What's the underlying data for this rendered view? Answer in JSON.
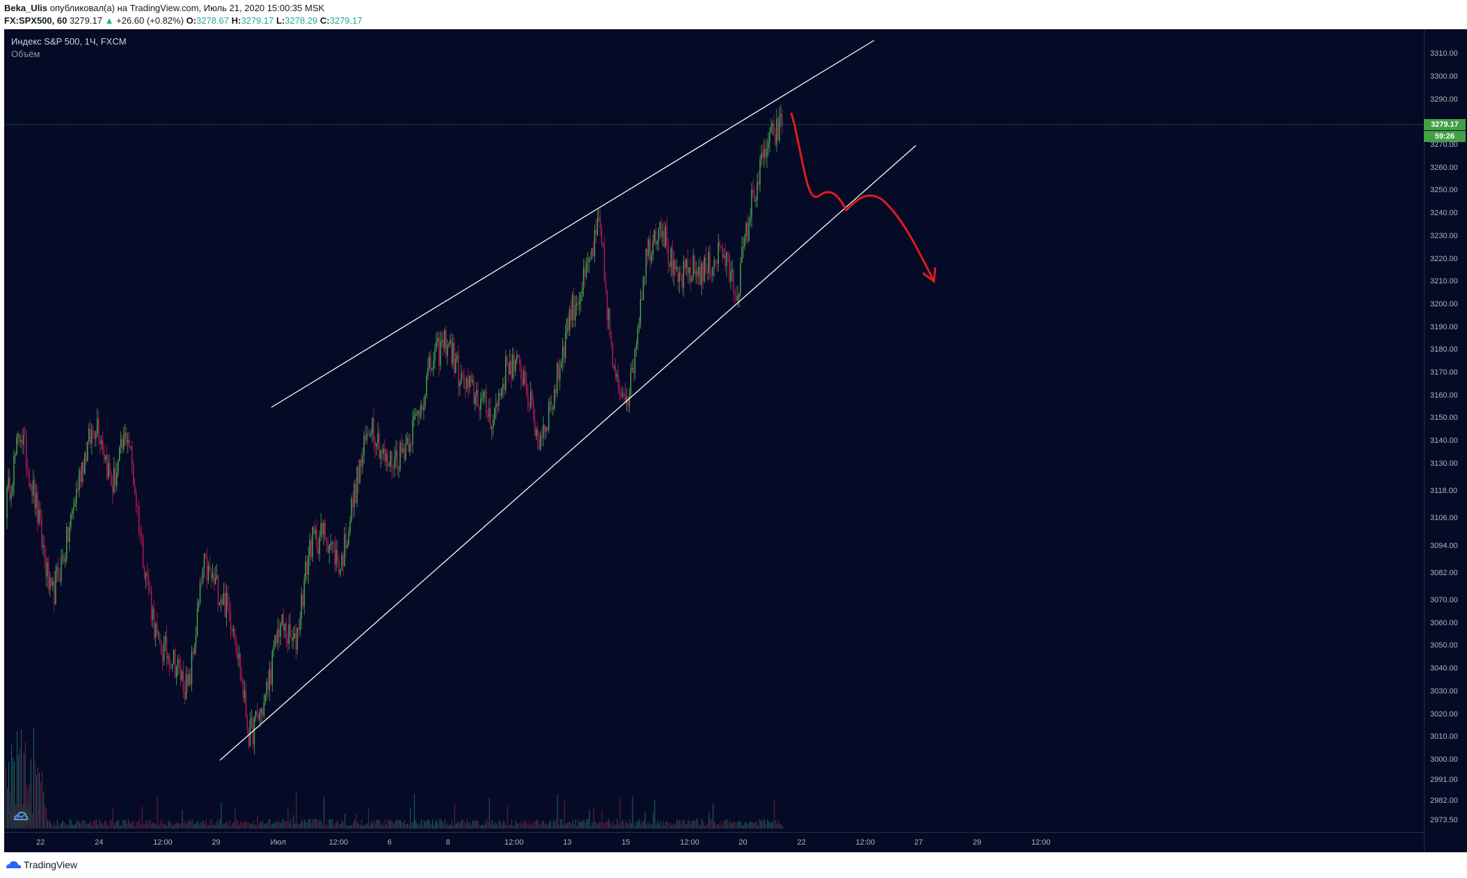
{
  "header": {
    "author": "Beka_Ulis",
    "published_text": "опубликовал(а) на TradingView.com, Июль 21, 2020 15:00:35 MSK",
    "symbol": "FX:SPX500, 60",
    "last": "3279.17",
    "change": "+26.60 (+0.82%)",
    "o_label": "O:",
    "o_val": "3278.67",
    "h_label": "H:",
    "h_val": "3279.17",
    "l_label": "L:",
    "l_val": "3278.29",
    "c_label": "C:",
    "c_val": "3279.17"
  },
  "legend": {
    "title": "Индекс S&P 500, 1Ч, FXCM",
    "volume": "Объём"
  },
  "price_axis": {
    "ticks": [
      "3310.00",
      "3300.00",
      "3290.00",
      "3270.00",
      "3260.00",
      "3250.00",
      "3240.00",
      "3230.00",
      "3220.00",
      "3210.00",
      "3200.00",
      "3190.00",
      "3180.00",
      "3170.00",
      "3160.00",
      "3150.00",
      "3140.00",
      "3130.00",
      "3118.00",
      "3106.00",
      "3094.00",
      "3082.00",
      "3070.00",
      "3060.00",
      "3050.00",
      "3040.00",
      "3030.00",
      "3020.00",
      "3010.00",
      "3000.00",
      "2991.00",
      "2982.00",
      "2973.50"
    ],
    "last_price_tag": "3279.17",
    "countdown_tag": "59:26"
  },
  "time_axis": {
    "ticks": [
      "22",
      "24",
      "12:00",
      "29",
      "Июл",
      "12:00",
      "6",
      "8",
      "12:00",
      "13",
      "15",
      "12:00",
      "20",
      "22",
      "12:00",
      "27",
      "29",
      "12:00"
    ]
  },
  "footer": {
    "brand": "TradingView"
  },
  "colors": {
    "background": "#050b26",
    "up": "#26a69a",
    "candle_up": "#4caf50",
    "candle_down": "#c2185b",
    "trendline": "#ffffff",
    "projection": "#e01c1c",
    "last_price": "#43a047"
  },
  "chart_data": {
    "type": "candlestick",
    "title": "Индекс S&P 500, 1Ч, FXCM",
    "ylim": [
      2970,
      3318
    ],
    "close_path": [
      3112,
      3145,
      3112,
      3070,
      3095,
      3130,
      3150,
      3120,
      3145,
      3092,
      3050,
      3045,
      3030,
      3085,
      3075,
      3060,
      3010,
      3025,
      3060,
      3050,
      3095,
      3100,
      3085,
      3120,
      3150,
      3130,
      3135,
      3150,
      3175,
      3185,
      3165,
      3160,
      3150,
      3175,
      3170,
      3140,
      3160,
      3195,
      3210,
      3235,
      3165,
      3162,
      3220,
      3238,
      3210,
      3215,
      3215,
      3225,
      3205,
      3245,
      3270,
      3279.17
    ],
    "last_close": 3279.17,
    "projection_path": [
      3279,
      3240,
      3245,
      3237,
      3248,
      3205
    ]
  }
}
